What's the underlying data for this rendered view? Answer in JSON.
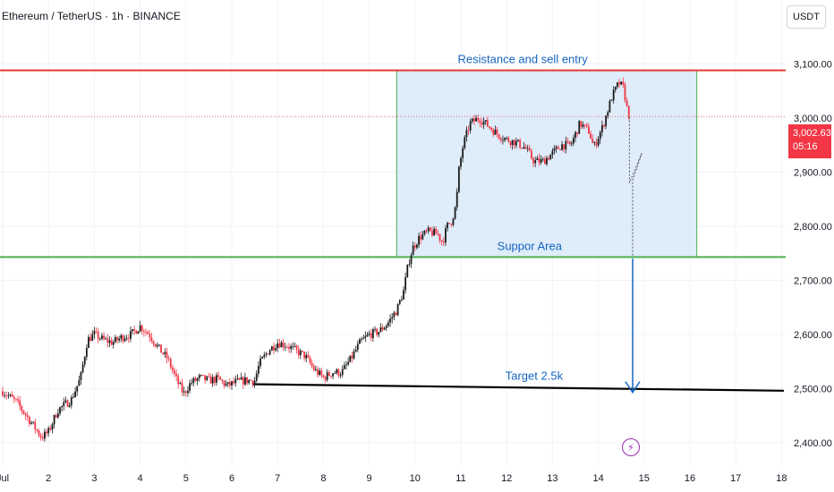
{
  "header": {
    "title": "Ethereum / TetherUS · 1h · BINANCE",
    "currency_button": "USDT"
  },
  "price_tag": {
    "price": "3,002.63",
    "countdown": "05:16",
    "color": "#f23645"
  },
  "flash_icon": "flash-icon",
  "chart_data": {
    "type": "candlestick",
    "symbol": "ETHUSDT",
    "interval": "1h",
    "x_ticks": [
      "Jul",
      "2",
      "3",
      "4",
      "5",
      "6",
      "7",
      "8",
      "9",
      "10",
      "11",
      "12",
      "13",
      "14",
      "15",
      "16",
      "17",
      "18"
    ],
    "y_ticks": [
      "2,400.00",
      "2,500.00",
      "2,600.00",
      "2,700.00",
      "2,800.00",
      "2,900.00",
      "3,000.00",
      "3,100.00"
    ],
    "y_tick_values": [
      2400,
      2500,
      2600,
      2700,
      2800,
      2900,
      3000,
      3100
    ],
    "ylim": [
      2360,
      3210
    ],
    "xlim": [
      1,
      18.05
    ],
    "last_price": 3002.63,
    "close_path": [
      [
        1.0,
        2495
      ],
      [
        1.3,
        2475
      ],
      [
        1.6,
        2440
      ],
      [
        1.85,
        2410
      ],
      [
        2.0,
        2420
      ],
      [
        2.2,
        2460
      ],
      [
        2.5,
        2480
      ],
      [
        2.7,
        2520
      ],
      [
        2.85,
        2590
      ],
      [
        3.0,
        2600
      ],
      [
        3.2,
        2590
      ],
      [
        3.4,
        2585
      ],
      [
        3.6,
        2595
      ],
      [
        3.8,
        2600
      ],
      [
        4.0,
        2615
      ],
      [
        4.2,
        2600
      ],
      [
        4.4,
        2575
      ],
      [
        4.6,
        2555
      ],
      [
        4.8,
        2515
      ],
      [
        4.95,
        2490
      ],
      [
        5.1,
        2510
      ],
      [
        5.3,
        2520
      ],
      [
        5.5,
        2515
      ],
      [
        5.7,
        2518
      ],
      [
        5.9,
        2505
      ],
      [
        6.1,
        2512
      ],
      [
        6.3,
        2515
      ],
      [
        6.5,
        2515
      ],
      [
        6.6,
        2545
      ],
      [
        6.8,
        2570
      ],
      [
        7.0,
        2585
      ],
      [
        7.2,
        2580
      ],
      [
        7.4,
        2570
      ],
      [
        7.6,
        2560
      ],
      [
        7.8,
        2535
      ],
      [
        8.0,
        2520
      ],
      [
        8.2,
        2530
      ],
      [
        8.4,
        2530
      ],
      [
        8.6,
        2555
      ],
      [
        8.8,
        2585
      ],
      [
        9.0,
        2600
      ],
      [
        9.2,
        2605
      ],
      [
        9.4,
        2620
      ],
      [
        9.6,
        2645
      ],
      [
        9.75,
        2680
      ],
      [
        9.85,
        2730
      ],
      [
        9.95,
        2760
      ],
      [
        10.1,
        2780
      ],
      [
        10.3,
        2790
      ],
      [
        10.5,
        2785
      ],
      [
        10.6,
        2770
      ],
      [
        10.7,
        2800
      ],
      [
        10.8,
        2810
      ],
      [
        10.9,
        2840
      ],
      [
        10.95,
        2900
      ],
      [
        11.05,
        2950
      ],
      [
        11.2,
        2990
      ],
      [
        11.4,
        3000
      ],
      [
        11.6,
        2985
      ],
      [
        11.8,
        2970
      ],
      [
        12.0,
        2960
      ],
      [
        12.2,
        2955
      ],
      [
        12.4,
        2945
      ],
      [
        12.6,
        2920
      ],
      [
        12.8,
        2920
      ],
      [
        13.0,
        2935
      ],
      [
        13.2,
        2950
      ],
      [
        13.4,
        2950
      ],
      [
        13.6,
        2990
      ],
      [
        13.8,
        2975
      ],
      [
        13.9,
        2945
      ],
      [
        14.1,
        2985
      ],
      [
        14.3,
        3040
      ],
      [
        14.45,
        3065
      ],
      [
        14.55,
        3055
      ],
      [
        14.62,
        3020
      ],
      [
        14.68,
        3002.63
      ]
    ],
    "annotations": {
      "resistance": {
        "label": "Resistance and sell entry",
        "price": 3088,
        "color": "#e53935"
      },
      "support": {
        "label": "Suppor Area",
        "price": 2743,
        "color": "#4caf50"
      },
      "target": {
        "label": "Target 2.5k",
        "color": "#000000",
        "from": [
          6.45,
          2508
        ],
        "to": [
          18.05,
          2496
        ]
      },
      "zone": {
        "x_range": [
          9.6,
          16.15
        ],
        "price_range": [
          2743,
          3088
        ],
        "fill": "#dbeaf8",
        "border": "#4caf50"
      },
      "projection_path": [
        [
          14.68,
          3002
        ],
        [
          14.68,
          2880
        ],
        [
          14.95,
          2935
        ],
        [
          14.75,
          2885
        ],
        [
          14.75,
          2745
        ]
      ],
      "target_arrow": {
        "x": 14.75,
        "from_price": 2740,
        "to_price": 2493,
        "color": "#1565c0"
      },
      "label_color": "#1565c0"
    }
  }
}
